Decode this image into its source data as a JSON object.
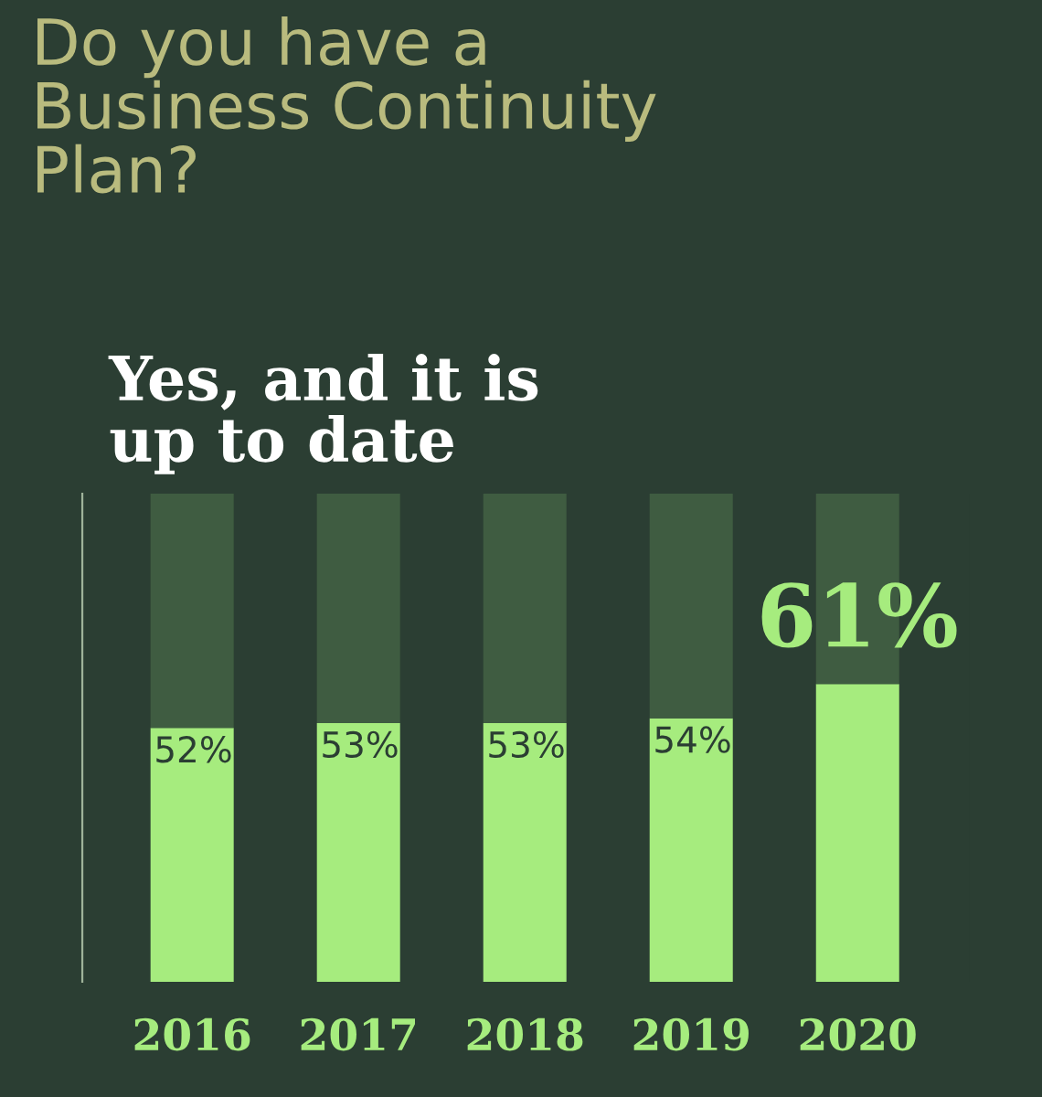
{
  "chart_data": {
    "type": "bar",
    "title": "Do you have a\nBusiness Continuity\nPlan?",
    "stacked": true,
    "categories": [
      "2016",
      "2017",
      "2018",
      "2019",
      "2020"
    ],
    "series": [
      {
        "name": "Yes, and it is\nup to date",
        "color": "#a6ec7e",
        "values": [
          52,
          53,
          53,
          54,
          61
        ],
        "value_labels": [
          "52%",
          "53%",
          "53%",
          "54%",
          "61%"
        ]
      },
      {
        "color": "#3f5c41",
        "values": [
          48,
          47,
          47,
          46,
          39
        ]
      }
    ],
    "ylim": [
      0,
      100
    ],
    "tick_labels": "x",
    "grid": false,
    "legend": false
  }
}
